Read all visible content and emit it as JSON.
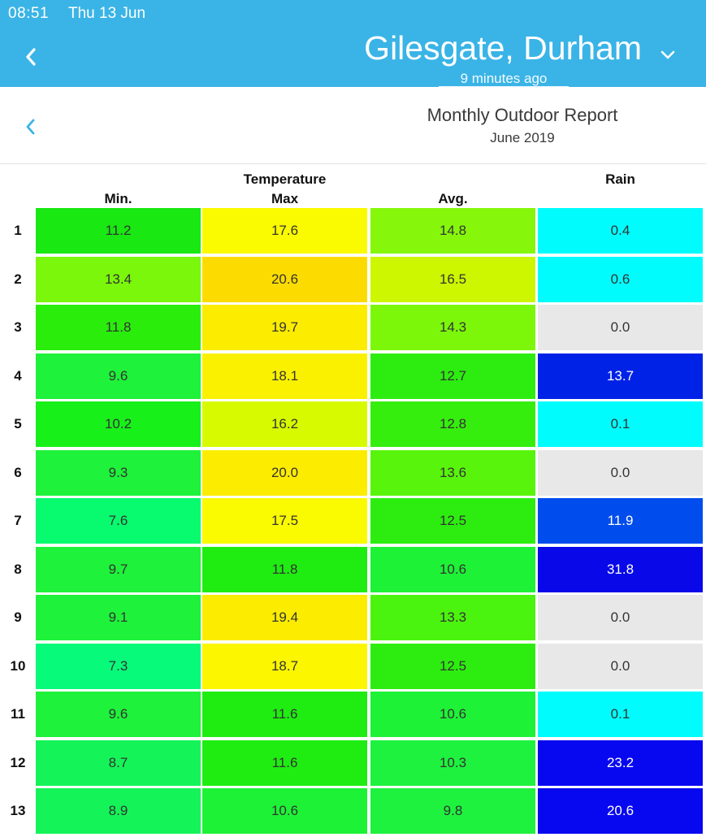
{
  "status_bar": {
    "time": "08:51",
    "date": "Thu 13 Jun"
  },
  "header": {
    "location": "Gilesgate, Durham",
    "updated": "9 minutes ago",
    "back_icon": "chevron-left-icon",
    "dropdown_icon": "chevron-down-icon",
    "bar_color": "#3ab4e6"
  },
  "report": {
    "title": "Monthly Outdoor Report",
    "period": "June 2019",
    "back_icon": "chevron-left-icon",
    "accent": "#3ab4e6"
  },
  "columns": {
    "temperature_group": "Temperature",
    "rain_group": "Rain",
    "min": "Min.",
    "max": "Max",
    "avg": "Avg."
  },
  "rows": [
    {
      "day": "1",
      "min": "11.2",
      "max": "17.6",
      "avg": "14.8",
      "rain": "0.4",
      "colors": [
        "#19e812",
        "#fafa00",
        "#86f70a",
        "#00fcfc"
      ]
    },
    {
      "day": "2",
      "min": "13.4",
      "max": "20.6",
      "avg": "16.5",
      "rain": "0.6",
      "colors": [
        "#7af70a",
        "#fcdc00",
        "#ccf700",
        "#00fcfc"
      ]
    },
    {
      "day": "3",
      "min": "11.8",
      "max": "19.7",
      "avg": "14.3",
      "rain": "0.0",
      "colors": [
        "#2aed0c",
        "#fcec00",
        "#7cf70a",
        "#e8e8e8"
      ]
    },
    {
      "day": "4",
      "min": "9.6",
      "max": "18.1",
      "avg": "12.7",
      "rain": "13.7",
      "colors": [
        "#1ef23a",
        "#faf100",
        "#2ded10",
        "#0022e6"
      ]
    },
    {
      "day": "5",
      "min": "10.2",
      "max": "16.2",
      "avg": "12.8",
      "rain": "0.1",
      "colors": [
        "#18f01a",
        "#d8fa00",
        "#36ee0e",
        "#00fcfc"
      ]
    },
    {
      "day": "6",
      "min": "9.3",
      "max": "20.0",
      "avg": "13.6",
      "rain": "0.0",
      "colors": [
        "#1ef23a",
        "#fcec00",
        "#58f40c",
        "#e8e8e8"
      ]
    },
    {
      "day": "7",
      "min": "7.6",
      "max": "17.5",
      "avg": "12.5",
      "rain": "11.9",
      "colors": [
        "#08fa6e",
        "#fafa00",
        "#2ded10",
        "#004ced"
      ]
    },
    {
      "day": "8",
      "min": "9.7",
      "max": "11.8",
      "avg": "10.6",
      "rain": "31.8",
      "colors": [
        "#1ef23a",
        "#1fed12",
        "#1ef236",
        "#0808e8"
      ]
    },
    {
      "day": "9",
      "min": "9.1",
      "max": "19.4",
      "avg": "13.3",
      "rain": "0.0",
      "colors": [
        "#1ef23a",
        "#fcec00",
        "#4af40e",
        "#e8e8e8"
      ]
    },
    {
      "day": "10",
      "min": "7.3",
      "max": "18.7",
      "avg": "12.5",
      "rain": "0.0",
      "colors": [
        "#08fa7a",
        "#fcf600",
        "#2ded10",
        "#e8e8e8"
      ]
    },
    {
      "day": "11",
      "min": "9.6",
      "max": "11.6",
      "avg": "10.6",
      "rain": "0.1",
      "colors": [
        "#1ef23a",
        "#1fed12",
        "#1ef236",
        "#00fcfc"
      ]
    },
    {
      "day": "12",
      "min": "8.7",
      "max": "11.6",
      "avg": "10.3",
      "rain": "23.2",
      "colors": [
        "#14f458",
        "#1fed12",
        "#1ef23e",
        "#0808f0"
      ]
    },
    {
      "day": "13",
      "min": "8.9",
      "max": "10.6",
      "avg": "9.8",
      "rain": "20.6",
      "colors": [
        "#14f458",
        "#1ef236",
        "#1ef23e",
        "#0808f0"
      ]
    }
  ]
}
